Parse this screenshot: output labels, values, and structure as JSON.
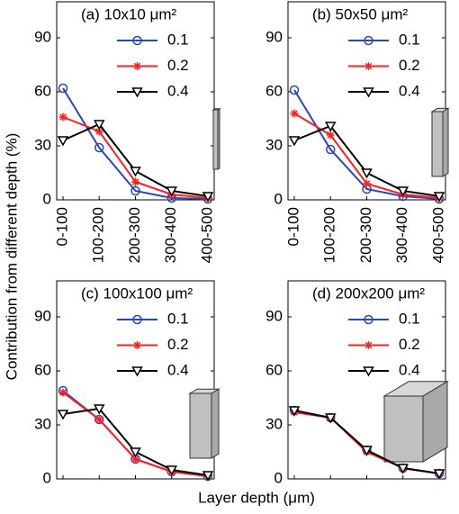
{
  "ylabel": "Contribution from different depth (%)",
  "xlabel": "Layer depth (μm)",
  "chart_data": [
    {
      "type": "line",
      "title": "(a) 10x10 μm²",
      "categories": [
        "0-100",
        "100-200",
        "200-300",
        "300-400",
        "400-500"
      ],
      "ylim": [
        0,
        110
      ],
      "yticks": [
        0,
        30,
        60,
        90
      ],
      "legend": "upper right",
      "series": [
        {
          "name": "0.1",
          "color": "#2a47b5",
          "marker": "circle",
          "values": [
            62,
            29,
            5,
            1,
            0.5
          ]
        },
        {
          "name": "0.2",
          "color": "#ff1f1f",
          "marker": "asterisk",
          "values": [
            46,
            38,
            10,
            3,
            1
          ]
        },
        {
          "name": "0.4",
          "color": "#000000",
          "marker": "triangle-down",
          "values": [
            33,
            42,
            16,
            5,
            2
          ]
        }
      ]
    },
    {
      "type": "line",
      "title": "(b) 50x50 μm²",
      "categories": [
        "0-100",
        "100-200",
        "200-300",
        "300-400",
        "400-500"
      ],
      "ylim": [
        0,
        110
      ],
      "yticks": [
        0,
        30,
        60,
        90
      ],
      "legend": "upper right",
      "series": [
        {
          "name": "0.1",
          "color": "#2a47b5",
          "marker": "circle",
          "values": [
            61,
            28,
            6,
            2,
            0.5
          ]
        },
        {
          "name": "0.2",
          "color": "#ff1f1f",
          "marker": "asterisk",
          "values": [
            48,
            36,
            9,
            3,
            1
          ]
        },
        {
          "name": "0.4",
          "color": "#000000",
          "marker": "triangle-down",
          "values": [
            33,
            41,
            15,
            5,
            2
          ]
        }
      ]
    },
    {
      "type": "line",
      "title": "(c) 100x100 μm²",
      "categories": [
        null,
        null,
        null,
        null,
        null
      ],
      "ylim": [
        0,
        110
      ],
      "yticks": [
        0,
        30,
        60,
        90
      ],
      "legend": "upper right",
      "series": [
        {
          "name": "0.1",
          "color": "#2a47b5",
          "marker": "circle",
          "values": [
            49,
            33,
            11,
            4,
            1.5
          ]
        },
        {
          "name": "0.2",
          "color": "#ff1f1f",
          "marker": "asterisk",
          "values": [
            48,
            33,
            11,
            4,
            1.5
          ]
        },
        {
          "name": "0.4",
          "color": "#000000",
          "marker": "triangle-down",
          "values": [
            36,
            39,
            15,
            5,
            2
          ]
        }
      ]
    },
    {
      "type": "line",
      "title": "(d) 200x200 μm²",
      "categories": [
        null,
        null,
        null,
        null,
        null
      ],
      "ylim": [
        0,
        110
      ],
      "yticks": [
        0,
        30,
        60,
        90
      ],
      "legend": "upper right",
      "series": [
        {
          "name": "0.1",
          "color": "#2a47b5",
          "marker": "circle",
          "values": [
            38,
            34,
            16,
            6,
            3
          ]
        },
        {
          "name": "0.2",
          "color": "#ff1f1f",
          "marker": "asterisk",
          "values": [
            37,
            34,
            15,
            6,
            3
          ]
        },
        {
          "name": "0.4",
          "color": "#000000",
          "marker": "triangle-down",
          "values": [
            38,
            34,
            16,
            6,
            3
          ]
        }
      ]
    }
  ]
}
